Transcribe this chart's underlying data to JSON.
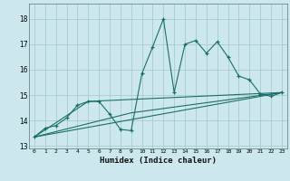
{
  "xlabel": "Humidex (Indice chaleur)",
  "bg_color": "#cce8ee",
  "grid_color": "#aacccc",
  "line_color": "#1a6e6a",
  "xlim": [
    -0.5,
    23.5
  ],
  "ylim": [
    12.9,
    18.6
  ],
  "yticks": [
    13,
    14,
    15,
    16,
    17,
    18
  ],
  "xticks": [
    0,
    1,
    2,
    3,
    4,
    5,
    6,
    7,
    8,
    9,
    10,
    11,
    12,
    13,
    14,
    15,
    16,
    17,
    18,
    19,
    20,
    21,
    22,
    23
  ],
  "series": [
    [
      0,
      13.35
    ],
    [
      1,
      13.7
    ],
    [
      2,
      13.8
    ],
    [
      3,
      14.1
    ],
    [
      4,
      14.6
    ],
    [
      5,
      14.75
    ],
    [
      6,
      14.75
    ],
    [
      7,
      14.25
    ],
    [
      8,
      13.65
    ],
    [
      9,
      13.6
    ],
    [
      10,
      15.85
    ],
    [
      11,
      16.9
    ],
    [
      12,
      18.0
    ],
    [
      13,
      15.1
    ],
    [
      14,
      17.0
    ],
    [
      15,
      17.15
    ],
    [
      16,
      16.65
    ],
    [
      17,
      17.1
    ],
    [
      18,
      16.5
    ],
    [
      19,
      15.75
    ],
    [
      20,
      15.6
    ],
    [
      21,
      15.05
    ],
    [
      22,
      14.95
    ],
    [
      23,
      15.1
    ]
  ],
  "line2": [
    [
      0,
      13.35
    ],
    [
      23,
      15.1
    ]
  ],
  "line3": [
    [
      0,
      13.35
    ],
    [
      5,
      14.75
    ],
    [
      23,
      15.1
    ]
  ],
  "line4": [
    [
      0,
      13.35
    ],
    [
      9,
      14.3
    ],
    [
      23,
      15.1
    ]
  ]
}
